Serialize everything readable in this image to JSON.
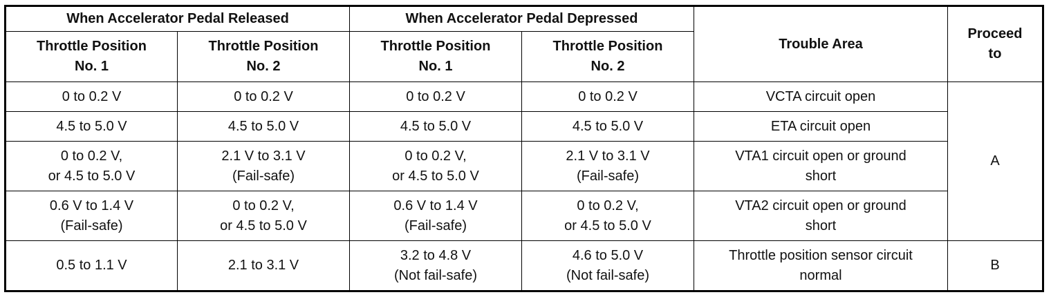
{
  "header": {
    "released": "When Accelerator Pedal Released",
    "depressed": "When Accelerator Pedal Depressed",
    "trouble_area": "Trouble Area",
    "proceed_to": "Proceed\nto",
    "tp1": "Throttle Position\nNo. 1",
    "tp2": "Throttle Position\nNo. 2"
  },
  "rows": [
    {
      "r1": "0 to 0.2 V",
      "r2": "0 to 0.2 V",
      "d1": "0 to 0.2 V",
      "d2": "0 to 0.2 V",
      "area": "VCTA circuit open"
    },
    {
      "r1": "4.5 to 5.0 V",
      "r2": "4.5 to 5.0 V",
      "d1": "4.5 to 5.0 V",
      "d2": "4.5 to 5.0 V",
      "area": "ETA circuit open"
    },
    {
      "r1": "0 to 0.2 V,\nor 4.5 to 5.0 V",
      "r2": "2.1 V to 3.1 V\n(Fail-safe)",
      "d1": "0 to 0.2 V,\nor 4.5 to 5.0 V",
      "d2": "2.1 V to 3.1 V\n(Fail-safe)",
      "area": "VTA1 circuit open or ground\nshort"
    },
    {
      "r1": "0.6 V to 1.4 V\n(Fail-safe)",
      "r2": "0 to 0.2 V,\nor 4.5 to 5.0 V",
      "d1": "0.6 V to 1.4 V\n(Fail-safe)",
      "d2": "0 to 0.2 V,\nor 4.5 to 5.0 V",
      "area": "VTA2 circuit open or ground\nshort"
    },
    {
      "r1": "0.5 to 1.1 V",
      "r2": "2.1 to 3.1 V",
      "d1": "3.2 to 4.8 V\n(Not fail-safe)",
      "d2": "4.6 to 5.0 V\n(Not fail-safe)",
      "area": "Throttle position sensor circuit\nnormal"
    }
  ],
  "proceed": {
    "a": "A",
    "b": "B"
  }
}
